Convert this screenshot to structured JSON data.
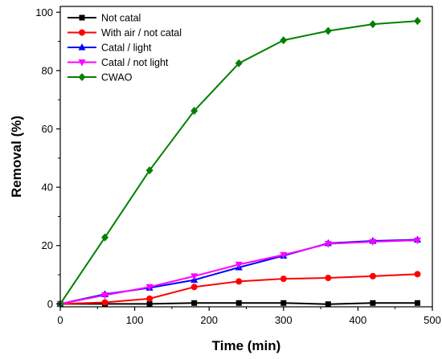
{
  "chart_data": {
    "type": "line",
    "xlabel": "Time (min)",
    "ylabel": "Removal  (%)",
    "xlim": [
      0,
      500
    ],
    "ylim": [
      -1,
      102
    ],
    "xticks": [
      0,
      100,
      200,
      300,
      400,
      500
    ],
    "yticks": [
      0,
      20,
      40,
      60,
      80,
      100
    ],
    "grid": false,
    "legend_position": "top-left",
    "series": [
      {
        "name": "Not catal",
        "color": "#000000",
        "marker": "square",
        "x": [
          0,
          60,
          120,
          180,
          240,
          300,
          360,
          420,
          480
        ],
        "y": [
          0,
          0,
          0,
          0.3,
          0.3,
          0.3,
          -0.1,
          0.3,
          0.3
        ]
      },
      {
        "name": "With air / not catal",
        "color": "#ff0000",
        "marker": "circle",
        "x": [
          0,
          60,
          120,
          180,
          240,
          300,
          360,
          420,
          480
        ],
        "y": [
          0,
          0.5,
          1.8,
          5.8,
          7.7,
          8.6,
          8.9,
          9.5,
          10.2
        ]
      },
      {
        "name": "Catal / light",
        "color": "#0000ff",
        "marker": "triangle-up",
        "x": [
          0,
          60,
          120,
          180,
          240,
          300,
          360,
          420,
          480
        ],
        "y": [
          0,
          3.3,
          5.5,
          8.2,
          12.5,
          16.5,
          20.8,
          21.6,
          22
        ]
      },
      {
        "name": "Catal / not light",
        "color": "#ff00ff",
        "marker": "triangle-down",
        "x": [
          0,
          60,
          120,
          180,
          240,
          300,
          360,
          420,
          480
        ],
        "y": [
          0,
          3,
          5.8,
          9.5,
          13.5,
          16.8,
          20.6,
          21.3,
          21.8
        ]
      },
      {
        "name": "CWAO",
        "color": "#008000",
        "marker": "diamond",
        "x": [
          0,
          60,
          120,
          180,
          240,
          300,
          360,
          420,
          480
        ],
        "y": [
          0,
          22.8,
          45.8,
          66.2,
          82.5,
          90.4,
          93.6,
          95.9,
          97
        ]
      }
    ]
  }
}
